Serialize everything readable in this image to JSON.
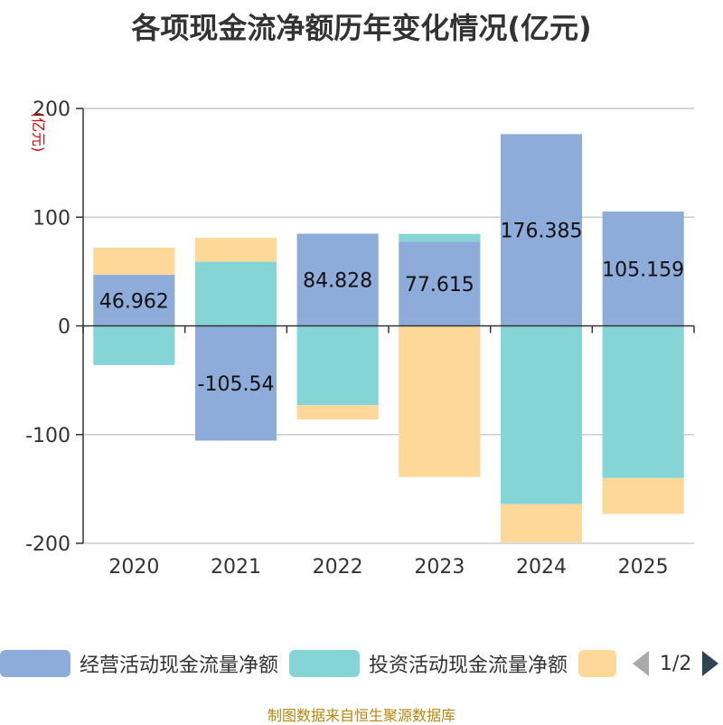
{
  "title": "各项现金流净额历年变化情况(亿元)",
  "unit_label": "(亿元)",
  "source": "制图数据来自恒生聚源数据库",
  "legend": {
    "items": [
      {
        "label": "经营活动现金流量净额",
        "color": "#8eacd9"
      },
      {
        "label": "投资活动现金流量净额",
        "color": "#86d5d6"
      },
      {
        "label": "",
        "color": "#fdd898"
      }
    ],
    "page": "1/2"
  },
  "chart_data": {
    "type": "bar",
    "stacked": true,
    "categories": [
      "2020",
      "2021",
      "2022",
      "2023",
      "2024",
      "2025"
    ],
    "ylim": [
      -200,
      200
    ],
    "yticks": [
      200,
      100,
      0,
      -100,
      -200
    ],
    "grid": true,
    "series": [
      {
        "name": "经营活动现金流量净额",
        "color": "#8eacd9",
        "values": [
          46.962,
          -105.54,
          84.828,
          77.615,
          176.385,
          105.159
        ],
        "labels": [
          "46.962",
          "-105.54",
          "84.828",
          "77.615",
          "176.385",
          "105.159"
        ]
      },
      {
        "name": "投资活动现金流量净额",
        "color": "#86d5d6",
        "values": [
          -36,
          59,
          -73,
          7,
          -164,
          -140
        ]
      },
      {
        "color": "#fdd898",
        "values": [
          25,
          22,
          -13,
          -139,
          -35,
          -33
        ]
      }
    ]
  }
}
